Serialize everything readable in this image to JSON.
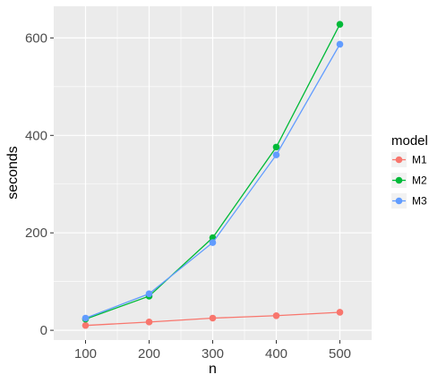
{
  "chart_data": {
    "type": "line",
    "xlabel": "n",
    "ylabel": "seconds",
    "x": [
      100,
      200,
      300,
      400,
      500
    ],
    "xlim": [
      50,
      550
    ],
    "ylim": [
      -20,
      665
    ],
    "xticks": [
      100,
      200,
      300,
      400,
      500
    ],
    "yticks": [
      0,
      200,
      400,
      600
    ],
    "grid": true,
    "legend": {
      "title": "model",
      "placement": "right"
    },
    "series": [
      {
        "name": "M1",
        "color": "#F8766D",
        "values": [
          10,
          17,
          25,
          30,
          37
        ]
      },
      {
        "name": "M2",
        "color": "#00BA38",
        "values": [
          23,
          70,
          190,
          376,
          628
        ]
      },
      {
        "name": "M3",
        "color": "#619CFF",
        "values": [
          25,
          75,
          180,
          360,
          587
        ]
      }
    ]
  }
}
